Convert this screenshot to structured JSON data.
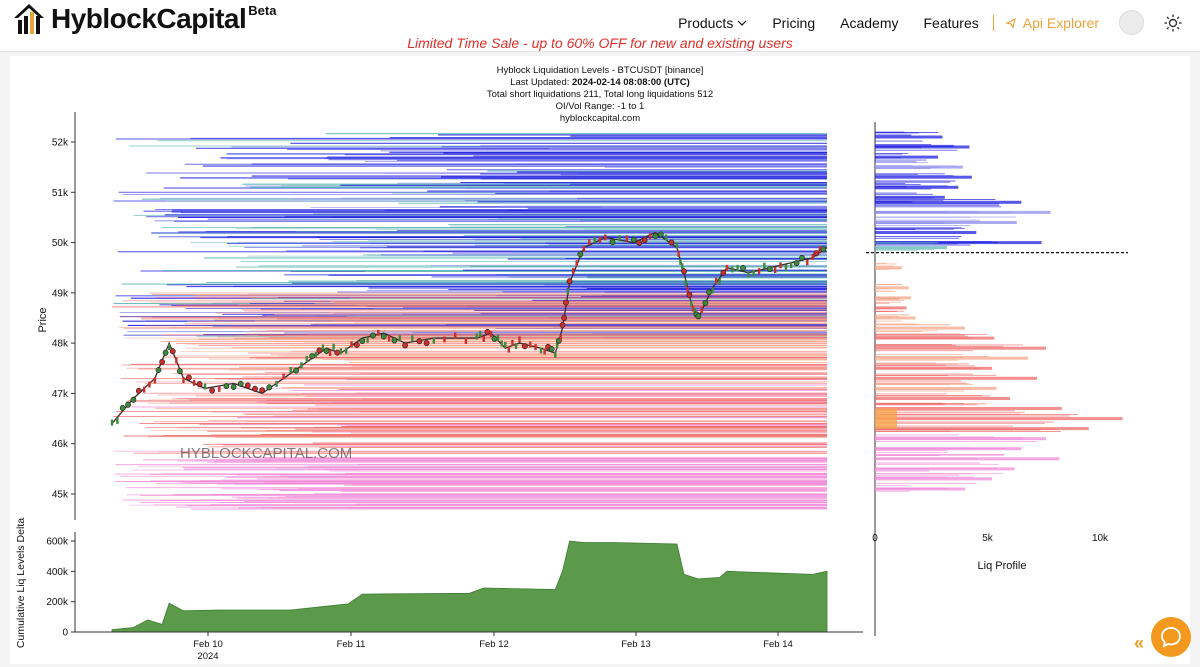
{
  "header": {
    "brand": "HyblockCapital",
    "brand_badge": "Beta",
    "sale_banner": "Limited Time Sale - up to 60% OFF for new and existing users",
    "nav": [
      {
        "label": "Products",
        "has_dropdown": true
      },
      {
        "label": "Pricing"
      },
      {
        "label": "Academy"
      },
      {
        "label": "Features"
      }
    ],
    "api_explorer": "Api Explorer",
    "accent_color": "#e8a43a",
    "sale_color": "#e0302a"
  },
  "chart_data": {
    "type": "heatmap",
    "title": "Hyblock Liquidation Levels - BTCUSDT [binance]",
    "last_updated_label": "Last Updated:",
    "last_updated_value": "2024-02-14 08:08:00 (UTC)",
    "totals_line": "Total short liquidations 211, Total long liquidations 512",
    "range_line": "OI/Vol Range: -1 to 1",
    "site": "hyblockcapital.com",
    "watermark": "HYBLOCKCAPITAL.COM",
    "ylabel": "Price",
    "ylim": [
      44500,
      52300
    ],
    "price_ticks": [
      "45k",
      "46k",
      "47k",
      "48k",
      "49k",
      "50k",
      "51k",
      "52k"
    ],
    "x_ticks": [
      "Feb 10",
      "Feb 11",
      "Feb 12",
      "Feb 13",
      "Feb 14"
    ],
    "x_subtick": "2024",
    "price_series": [
      {
        "t": 0.0,
        "p": 46400
      },
      {
        "t": 0.03,
        "p": 46900
      },
      {
        "t": 0.06,
        "p": 47300
      },
      {
        "t": 0.08,
        "p": 48000
      },
      {
        "t": 0.1,
        "p": 47300
      },
      {
        "t": 0.13,
        "p": 47100
      },
      {
        "t": 0.17,
        "p": 47200
      },
      {
        "t": 0.21,
        "p": 47000
      },
      {
        "t": 0.25,
        "p": 47400
      },
      {
        "t": 0.28,
        "p": 47700
      },
      {
        "t": 0.3,
        "p": 47900
      },
      {
        "t": 0.32,
        "p": 47800
      },
      {
        "t": 0.35,
        "p": 48100
      },
      {
        "t": 0.38,
        "p": 48200
      },
      {
        "t": 0.41,
        "p": 48000
      },
      {
        "t": 0.45,
        "p": 48100
      },
      {
        "t": 0.51,
        "p": 48100
      },
      {
        "t": 0.53,
        "p": 48200
      },
      {
        "t": 0.55,
        "p": 47900
      },
      {
        "t": 0.57,
        "p": 48000
      },
      {
        "t": 0.6,
        "p": 47900
      },
      {
        "t": 0.62,
        "p": 47800
      },
      {
        "t": 0.63,
        "p": 48300
      },
      {
        "t": 0.64,
        "p": 49200
      },
      {
        "t": 0.66,
        "p": 49900
      },
      {
        "t": 0.69,
        "p": 50100
      },
      {
        "t": 0.73,
        "p": 50000
      },
      {
        "t": 0.76,
        "p": 50200
      },
      {
        "t": 0.79,
        "p": 49900
      },
      {
        "t": 0.8,
        "p": 49400
      },
      {
        "t": 0.81,
        "p": 48800
      },
      {
        "t": 0.82,
        "p": 48500
      },
      {
        "t": 0.84,
        "p": 49100
      },
      {
        "t": 0.86,
        "p": 49500
      },
      {
        "t": 0.89,
        "p": 49400
      },
      {
        "t": 0.92,
        "p": 49500
      },
      {
        "t": 0.95,
        "p": 49600
      },
      {
        "t": 0.98,
        "p": 49700
      },
      {
        "t": 1.0,
        "p": 49900
      }
    ],
    "current_price": 49800,
    "delta_panel": {
      "ylabel": "Cumulative Liq Levels Delta",
      "ylim": [
        0,
        650000
      ],
      "y_ticks": [
        "0",
        "200k",
        "400k",
        "600k"
      ],
      "series": [
        {
          "t": 0.0,
          "v": 15000
        },
        {
          "t": 0.03,
          "v": 30000
        },
        {
          "t": 0.05,
          "v": 80000
        },
        {
          "t": 0.07,
          "v": 50000
        },
        {
          "t": 0.08,
          "v": 190000
        },
        {
          "t": 0.1,
          "v": 140000
        },
        {
          "t": 0.15,
          "v": 145000
        },
        {
          "t": 0.25,
          "v": 145000
        },
        {
          "t": 0.3,
          "v": 170000
        },
        {
          "t": 0.33,
          "v": 185000
        },
        {
          "t": 0.35,
          "v": 250000
        },
        {
          "t": 0.5,
          "v": 255000
        },
        {
          "t": 0.52,
          "v": 290000
        },
        {
          "t": 0.62,
          "v": 280000
        },
        {
          "t": 0.63,
          "v": 400000
        },
        {
          "t": 0.64,
          "v": 600000
        },
        {
          "t": 0.66,
          "v": 590000
        },
        {
          "t": 0.7,
          "v": 590000
        },
        {
          "t": 0.79,
          "v": 580000
        },
        {
          "t": 0.8,
          "v": 380000
        },
        {
          "t": 0.82,
          "v": 350000
        },
        {
          "t": 0.85,
          "v": 360000
        },
        {
          "t": 0.86,
          "v": 400000
        },
        {
          "t": 0.98,
          "v": 380000
        },
        {
          "t": 1.0,
          "v": 400000
        }
      ]
    },
    "profile_panel": {
      "xlabel": "Liq Profile",
      "x_ticks": [
        "0",
        "5k",
        "10k"
      ],
      "xlim": [
        0,
        11000
      ],
      "bars": [
        {
          "p": 52100,
          "v": 3000
        },
        {
          "p": 51900,
          "v": 4200
        },
        {
          "p": 51700,
          "v": 2800
        },
        {
          "p": 51500,
          "v": 3900
        },
        {
          "p": 51300,
          "v": 4300
        },
        {
          "p": 51100,
          "v": 3700
        },
        {
          "p": 50900,
          "v": 3100
        },
        {
          "p": 50800,
          "v": 6500
        },
        {
          "p": 50600,
          "v": 7800
        },
        {
          "p": 50400,
          "v": 6300
        },
        {
          "p": 50200,
          "v": 4500
        },
        {
          "p": 50000,
          "v": 7400
        },
        {
          "p": 49900,
          "v": 3200
        },
        {
          "p": 49500,
          "v": 1200
        },
        {
          "p": 49100,
          "v": 1500
        },
        {
          "p": 48900,
          "v": 1600
        },
        {
          "p": 48700,
          "v": 1400
        },
        {
          "p": 48500,
          "v": 1800
        },
        {
          "p": 48300,
          "v": 4000
        },
        {
          "p": 48100,
          "v": 5300
        },
        {
          "p": 47900,
          "v": 7600
        },
        {
          "p": 47700,
          "v": 6800
        },
        {
          "p": 47500,
          "v": 5200
        },
        {
          "p": 47300,
          "v": 7200
        },
        {
          "p": 47100,
          "v": 5400
        },
        {
          "p": 46900,
          "v": 6000
        },
        {
          "p": 46700,
          "v": 8300
        },
        {
          "p": 46500,
          "v": 11000
        },
        {
          "p": 46300,
          "v": 9500
        },
        {
          "p": 46100,
          "v": 7600
        },
        {
          "p": 45900,
          "v": 6500
        },
        {
          "p": 45700,
          "v": 8200
        },
        {
          "p": 45500,
          "v": 6200
        },
        {
          "p": 45300,
          "v": 5200
        },
        {
          "p": 45100,
          "v": 4000
        }
      ]
    },
    "colors": {
      "short_dense": "#1f1fe0",
      "short_light": "#8f8ff0",
      "teal": "#5fb6b6",
      "long_red": "#f06a6a",
      "long_salmon": "#f6a58a",
      "long_pink": "#f28ad8",
      "orange": "#f7a34a",
      "candle_up": "#3d8a3d",
      "candle_down": "#c9302c",
      "delta_fill": "#5a9a4a"
    }
  }
}
